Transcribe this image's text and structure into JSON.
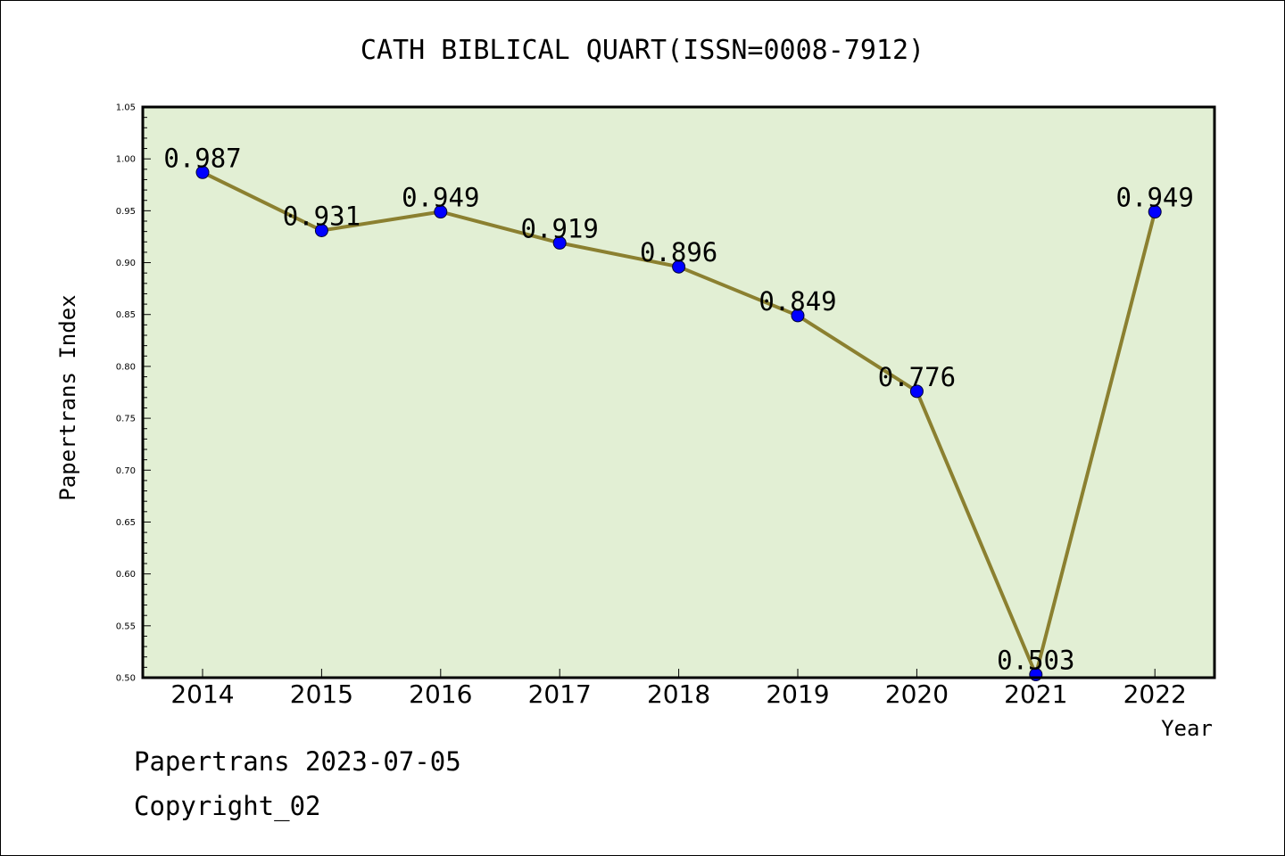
{
  "chart_data": {
    "type": "line",
    "title": "CATH BIBLICAL QUART(ISSN=0008-7912)",
    "xlabel": "Year",
    "ylabel": "Papertrans Index",
    "categories": [
      "2014",
      "2015",
      "2016",
      "2017",
      "2018",
      "2019",
      "2020",
      "2021",
      "2022"
    ],
    "series": [
      {
        "values": [
          0.987,
          0.931,
          0.949,
          0.919,
          0.896,
          0.849,
          0.776,
          0.503,
          0.949
        ]
      }
    ],
    "data_labels": [
      "0.987",
      "0.931",
      "0.949",
      "0.919",
      "0.896",
      "0.849",
      "0.776",
      "0.503",
      "0.949"
    ],
    "ylim": [
      0.5,
      1.05
    ],
    "yticks": [
      "0.50",
      "0.55",
      "0.60",
      "0.65",
      "0.70",
      "0.75",
      "0.80",
      "0.85",
      "0.90",
      "0.95",
      "1.00",
      "1.05"
    ],
    "ytick_values": [
      0.5,
      0.55,
      0.6,
      0.65,
      0.7,
      0.75,
      0.8,
      0.85,
      0.9,
      0.95,
      1.0,
      1.05
    ],
    "grid": false,
    "colors": {
      "plot_background": "#e2efd4",
      "line": "#8b8030",
      "marker": "#0000ff",
      "axes": "#000000"
    }
  },
  "footer": {
    "date_line": "Papertrans 2023-07-05",
    "copyright": "Copyright_02"
  }
}
